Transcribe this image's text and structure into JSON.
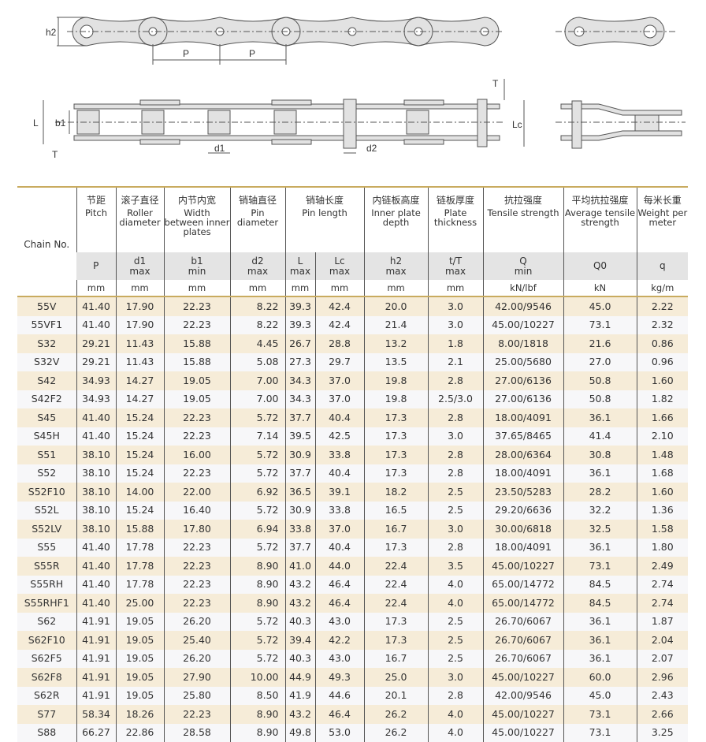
{
  "drawing_labels": {
    "h2": "h2",
    "P1": "P",
    "P2": "P",
    "L": "L",
    "b1": "b1",
    "T_left": "T",
    "d1": "d1",
    "d2": "d2",
    "T_right": "T",
    "Lc": "Lc"
  },
  "colors": {
    "accent_line": "#c9ab5f",
    "row_odd": "#f6ecd8",
    "row_even": "#f7f7f9",
    "symbol_row": "#e4e4e4"
  },
  "table": {
    "chain_header": "Chain No.",
    "columns": [
      {
        "zh": "节距",
        "en": "Pitch",
        "sym": "P",
        "sub": "",
        "unit": "mm"
      },
      {
        "zh": "滚子直径",
        "en": "Roller diameter",
        "sym": "d1",
        "sub": "max",
        "unit": "mm"
      },
      {
        "zh": "内节内宽",
        "en": "Width between inner plates",
        "sym": "b1",
        "sub": "min",
        "unit": "mm"
      },
      {
        "zh": "销轴直径",
        "en": "Pin diameter",
        "sym": "d2",
        "sub": "max",
        "unit": "mm"
      },
      {
        "zh": "销轴长度",
        "en": "Pin length",
        "sym": "L",
        "sub": "max",
        "unit": "mm"
      },
      {
        "zh": "",
        "en": "",
        "sym": "Lc",
        "sub": "max",
        "unit": "mm"
      },
      {
        "zh": "内链板高度",
        "en": "Inner plate depth",
        "sym": "h2",
        "sub": "max",
        "unit": "mm"
      },
      {
        "zh": "链板厚度",
        "en": "Plate thickness",
        "sym": "t/T",
        "sub": "max",
        "unit": "mm"
      },
      {
        "zh": "抗拉强度",
        "en": "Tensile strength",
        "sym": "Q",
        "sub": "min",
        "unit": "kN/lbf"
      },
      {
        "zh": "平均抗拉强度",
        "en": "Average tensile strength",
        "sym": "Q0",
        "sub": "",
        "unit": "kN"
      },
      {
        "zh": "每米长重",
        "en": "Weight per meter",
        "sym": "q",
        "sub": "",
        "unit": "kg/m"
      }
    ],
    "rows": [
      [
        "55V",
        "41.40",
        "17.90",
        "22.23",
        "8.22",
        "39.3",
        "42.4",
        "20.0",
        "3.0",
        "42.00/9546",
        "45.0",
        "2.22"
      ],
      [
        "55VF1",
        "41.40",
        "17.90",
        "22.23",
        "8.22",
        "39.3",
        "42.4",
        "21.4",
        "3.0",
        "45.00/10227",
        "73.1",
        "2.32"
      ],
      [
        "S32",
        "29.21",
        "11.43",
        "15.88",
        "4.45",
        "26.7",
        "28.8",
        "13.2",
        "1.8",
        "8.00/1818",
        "21.6",
        "0.86"
      ],
      [
        "S32V",
        "29.21",
        "11.43",
        "15.88",
        "5.08",
        "27.3",
        "29.7",
        "13.5",
        "2.1",
        "25.00/5680",
        "27.0",
        "0.96"
      ],
      [
        "S42",
        "34.93",
        "14.27",
        "19.05",
        "7.00",
        "34.3",
        "37.0",
        "19.8",
        "2.8",
        "27.00/6136",
        "50.8",
        "1.60"
      ],
      [
        "S42F2",
        "34.93",
        "14.27",
        "19.05",
        "7.00",
        "34.3",
        "37.0",
        "19.8",
        "2.5/3.0",
        "27.00/6136",
        "50.8",
        "1.82"
      ],
      [
        "S45",
        "41.40",
        "15.24",
        "22.23",
        "5.72",
        "37.7",
        "40.4",
        "17.3",
        "2.8",
        "18.00/4091",
        "36.1",
        "1.66"
      ],
      [
        "S45H",
        "41.40",
        "15.24",
        "22.23",
        "7.14",
        "39.5",
        "42.5",
        "17.3",
        "3.0",
        "37.65/8465",
        "41.4",
        "2.10"
      ],
      [
        "S51",
        "38.10",
        "15.24",
        "16.00",
        "5.72",
        "30.9",
        "33.8",
        "17.3",
        "2.8",
        "28.00/6364",
        "30.8",
        "1.48"
      ],
      [
        "S52",
        "38.10",
        "15.24",
        "22.23",
        "5.72",
        "37.7",
        "40.4",
        "17.3",
        "2.8",
        "18.00/4091",
        "36.1",
        "1.68"
      ],
      [
        "S52F10",
        "38.10",
        "14.00",
        "22.00",
        "6.92",
        "36.5",
        "39.1",
        "18.2",
        "2.5",
        "23.50/5283",
        "28.2",
        "1.60"
      ],
      [
        "S52L",
        "38.10",
        "15.24",
        "16.40",
        "5.72",
        "30.9",
        "33.8",
        "16.5",
        "2.5",
        "29.20/6636",
        "32.2",
        "1.36"
      ],
      [
        "S52LV",
        "38.10",
        "15.88",
        "17.80",
        "6.94",
        "33.8",
        "37.0",
        "16.7",
        "3.0",
        "30.00/6818",
        "32.5",
        "1.58"
      ],
      [
        "S55",
        "41.40",
        "17.78",
        "22.23",
        "5.72",
        "37.7",
        "40.4",
        "17.3",
        "2.8",
        "18.00/4091",
        "36.1",
        "1.80"
      ],
      [
        "S55R",
        "41.40",
        "17.78",
        "22.23",
        "8.90",
        "41.0",
        "44.0",
        "22.4",
        "3.5",
        "45.00/10227",
        "73.1",
        "2.49"
      ],
      [
        "S55RH",
        "41.40",
        "17.78",
        "22.23",
        "8.90",
        "43.2",
        "46.4",
        "22.4",
        "4.0",
        "65.00/14772",
        "84.5",
        "2.74"
      ],
      [
        "S55RHF1",
        "41.40",
        "25.00",
        "22.23",
        "8.90",
        "43.2",
        "46.4",
        "22.4",
        "4.0",
        "65.00/14772",
        "84.5",
        "2.74"
      ],
      [
        "S62",
        "41.91",
        "19.05",
        "26.20",
        "5.72",
        "40.3",
        "43.0",
        "17.3",
        "2.5",
        "26.70/6067",
        "36.1",
        "1.87"
      ],
      [
        "S62F10",
        "41.91",
        "19.05",
        "25.40",
        "5.72",
        "39.4",
        "42.2",
        "17.3",
        "2.5",
        "26.70/6067",
        "36.1",
        "2.04"
      ],
      [
        "S62F5",
        "41.91",
        "19.05",
        "26.20",
        "5.72",
        "40.3",
        "43.0",
        "16.7",
        "2.5",
        "26.70/6067",
        "36.1",
        "2.07"
      ],
      [
        "S62F8",
        "41.91",
        "19.05",
        "27.90",
        "10.00",
        "44.9",
        "49.3",
        "25.0",
        "3.0",
        "45.00/10227",
        "60.0",
        "2.96"
      ],
      [
        "S62R",
        "41.91",
        "19.05",
        "25.80",
        "8.50",
        "41.9",
        "44.6",
        "20.1",
        "2.8",
        "42.00/9546",
        "45.0",
        "2.43"
      ],
      [
        "S77",
        "58.34",
        "18.26",
        "22.23",
        "8.90",
        "43.2",
        "46.4",
        "26.2",
        "4.0",
        "45.00/10227",
        "73.1",
        "2.66"
      ],
      [
        "S88",
        "66.27",
        "22.86",
        "28.58",
        "8.90",
        "49.8",
        "53.0",
        "26.2",
        "4.0",
        "45.00/10227",
        "73.1",
        "3.25"
      ]
    ]
  }
}
